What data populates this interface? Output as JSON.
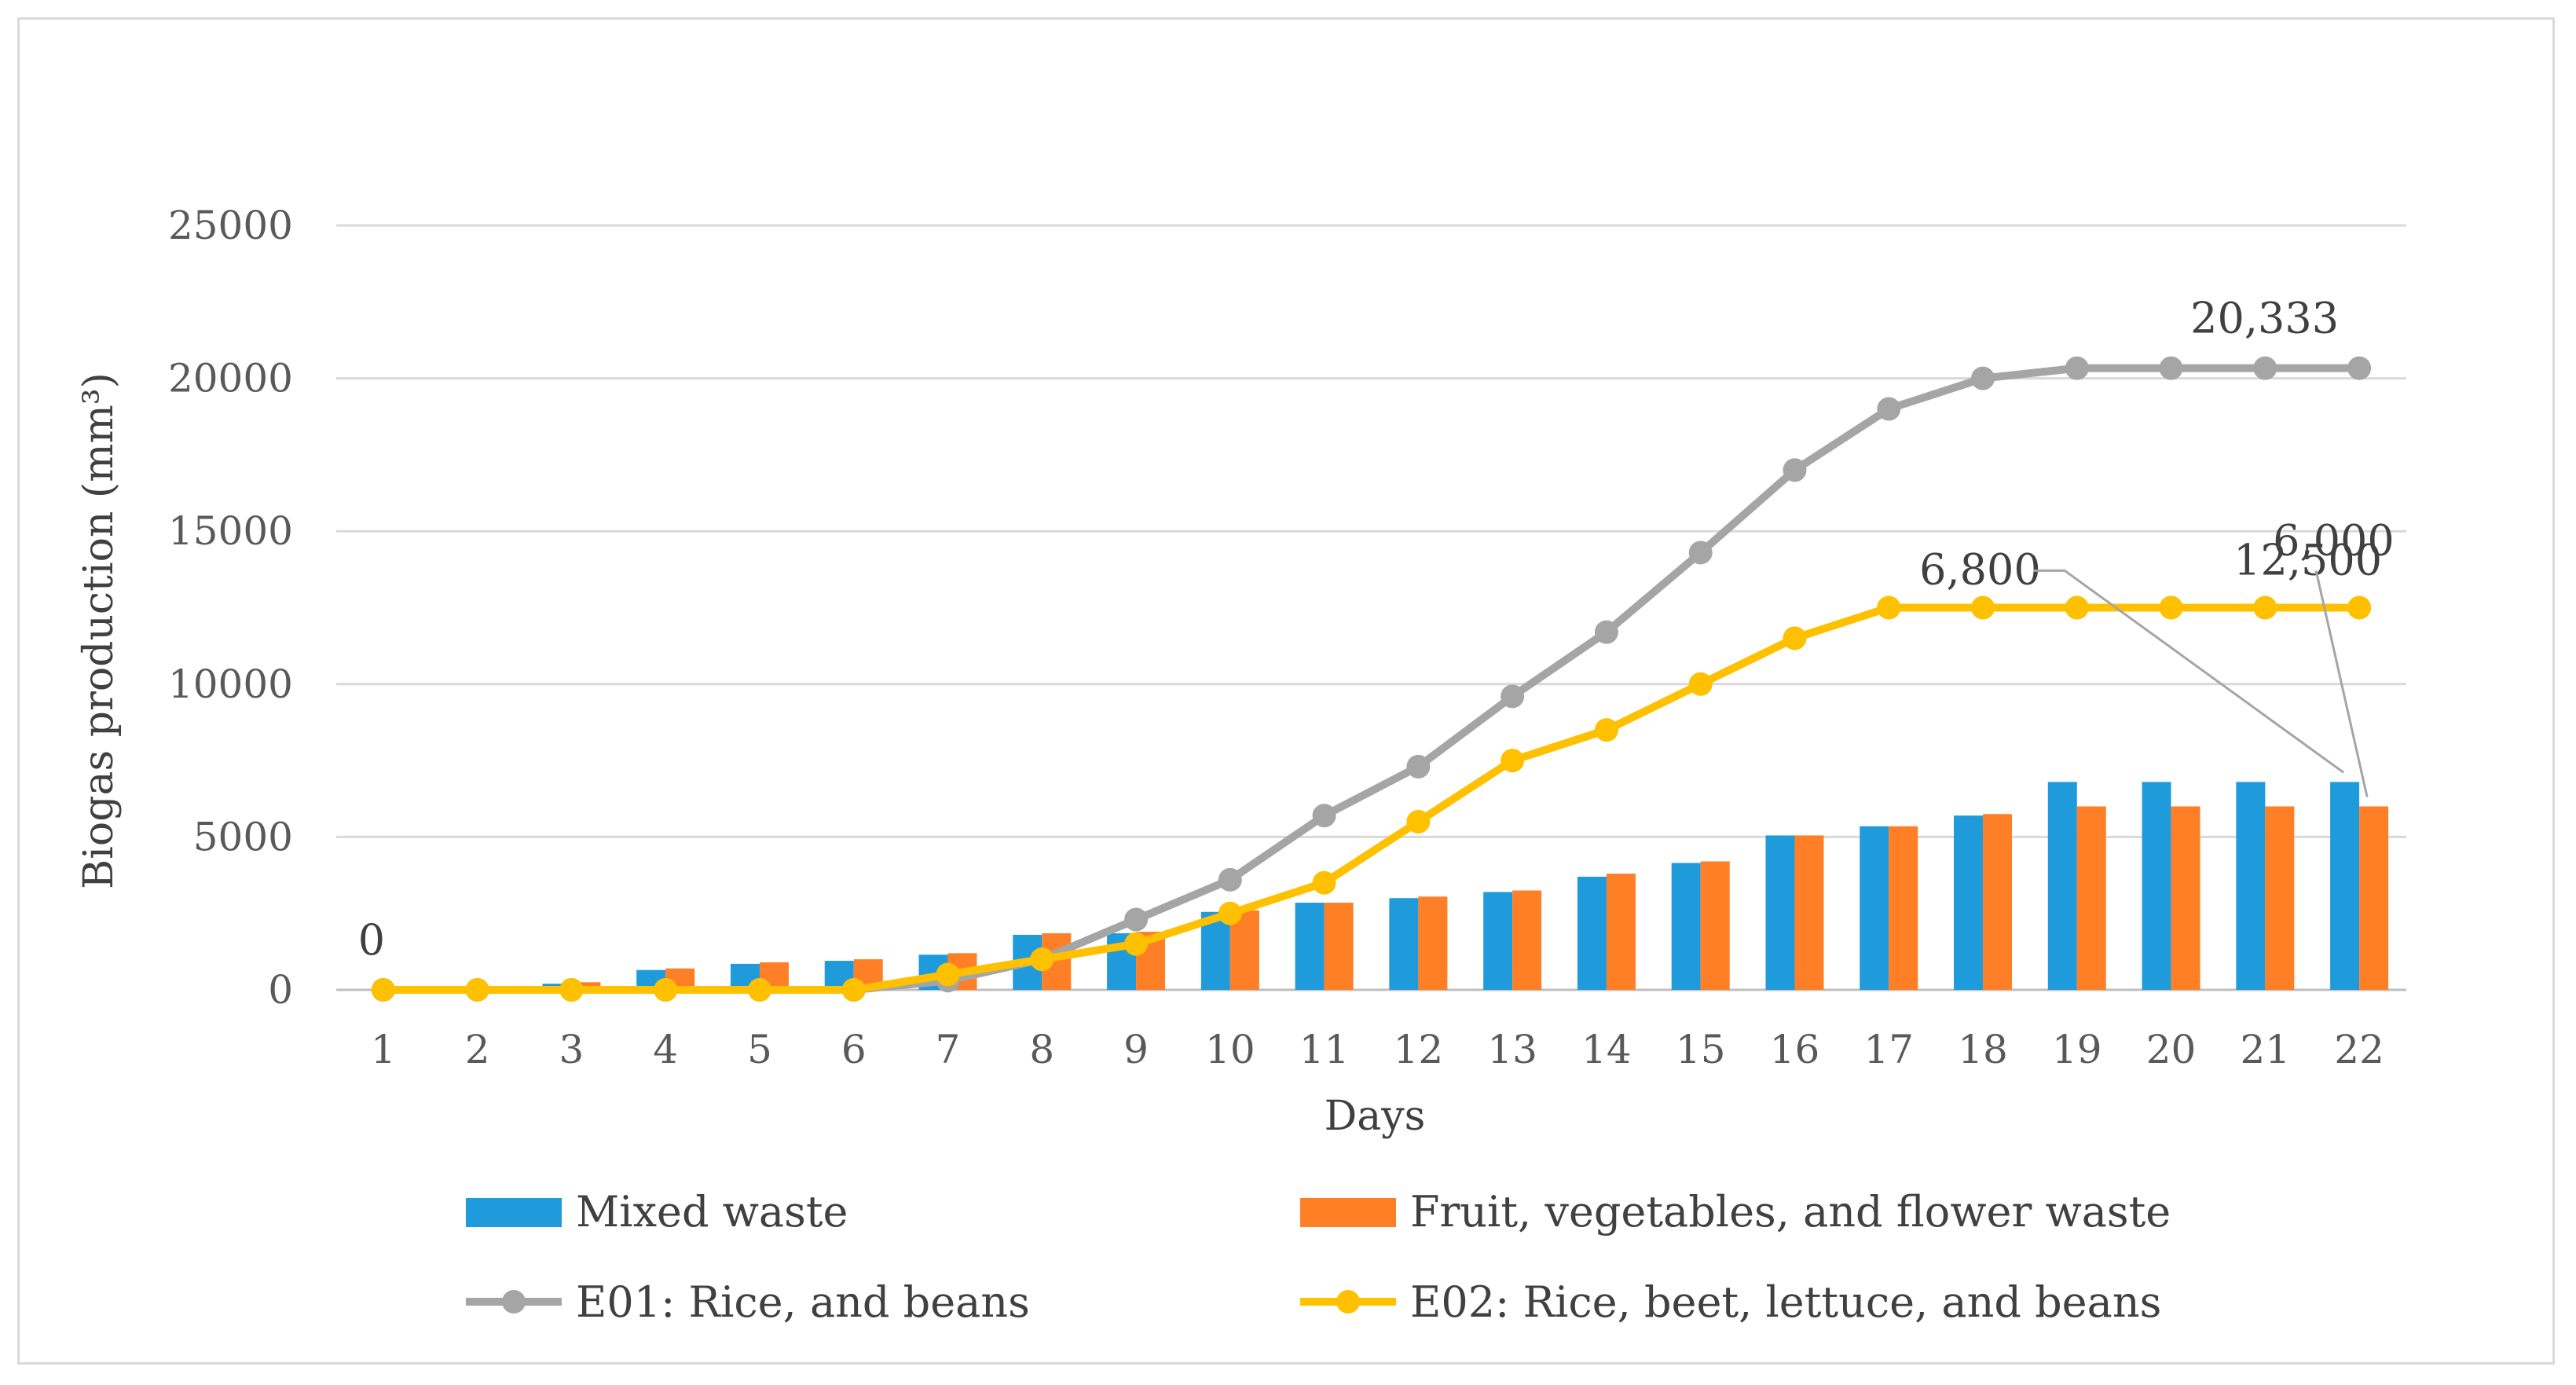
{
  "chart_data": {
    "type": "bar",
    "title": "",
    "xlabel": "Days",
    "ylabel": "Biogas production (mm³)",
    "ylim": [
      0,
      25000
    ],
    "yticks": [
      "0",
      "5000",
      "10000",
      "15000",
      "20000",
      "25000"
    ],
    "grid": true,
    "legend_position": "bottom",
    "categories": [
      "1",
      "2",
      "3",
      "4",
      "5",
      "6",
      "7",
      "8",
      "9",
      "10",
      "11",
      "12",
      "13",
      "14",
      "15",
      "16",
      "17",
      "18",
      "19",
      "20",
      "21",
      "22"
    ],
    "series": [
      {
        "name": "Mixed waste",
        "kind": "bar",
        "color": "#1f9bdb",
        "values": [
          0,
          0,
          200,
          650,
          850,
          950,
          1150,
          1800,
          1850,
          2550,
          2850,
          3000,
          3200,
          3700,
          4150,
          5050,
          5350,
          5700,
          6800,
          6800,
          6800,
          6800
        ]
      },
      {
        "name": "Fruit, vegetables, and flower waste",
        "kind": "bar",
        "color": "#ff7f27",
        "values": [
          0,
          0,
          250,
          700,
          900,
          1000,
          1200,
          1850,
          1900,
          2600,
          2850,
          3050,
          3250,
          3800,
          4200,
          5050,
          5350,
          5750,
          6000,
          6000,
          6000,
          6000
        ]
      },
      {
        "name": "E01: Rice, and beans",
        "kind": "line",
        "color": "#a5a5a5",
        "values": [
          0,
          0,
          0,
          0,
          0,
          0,
          300,
          1000,
          2300,
          3600,
          5700,
          7300,
          9600,
          11700,
          14300,
          17000,
          19000,
          20000,
          20333,
          20333,
          20333,
          20333
        ]
      },
      {
        "name": "E02: Rice, beet, lettuce, and beans",
        "kind": "line",
        "color": "#ffc000",
        "values": [
          0,
          0,
          0,
          0,
          0,
          0,
          500,
          1000,
          1500,
          2500,
          3500,
          5500,
          7500,
          8500,
          10000,
          11500,
          12500,
          12500,
          12500,
          12500,
          12500,
          12500
        ]
      }
    ],
    "annotations": [
      {
        "text": "0"
      },
      {
        "text": "20,333"
      },
      {
        "text": "12,500"
      },
      {
        "text": "6,800"
      },
      {
        "text": "6,000"
      }
    ]
  }
}
